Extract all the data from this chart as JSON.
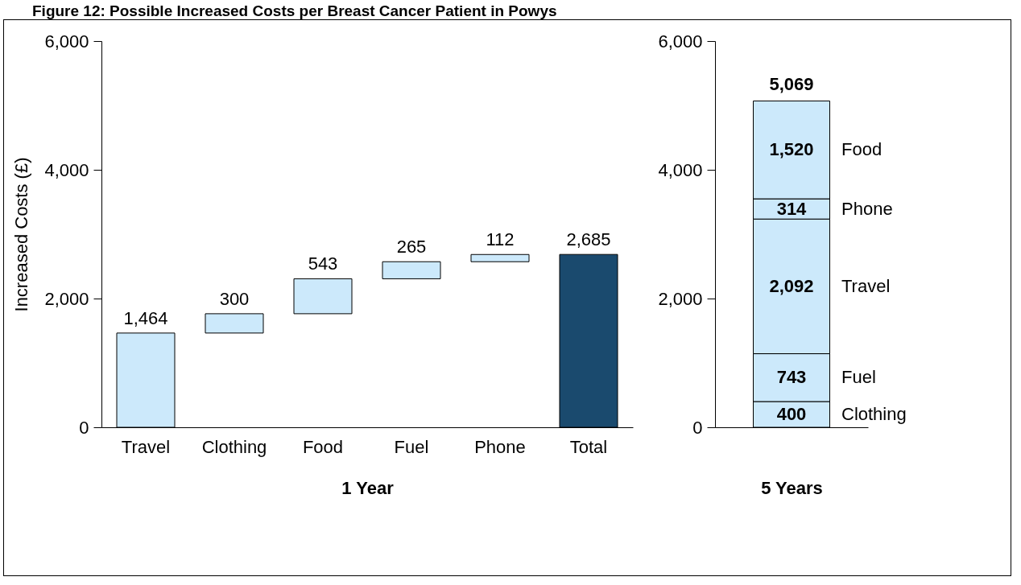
{
  "chart_data": [
    {
      "type": "bar",
      "title": "Figure 12: Possible Increased Costs per Breast Cancer Patient in Powys",
      "categories": [
        "Travel",
        "Clothing",
        "Food",
        "Fuel",
        "Phone",
        "Total"
      ],
      "values": [
        1464,
        300,
        543,
        265,
        112,
        2685
      ],
      "value_labels": [
        "1,464",
        "300",
        "543",
        "265",
        "112",
        "2,685"
      ],
      "base": [
        0,
        1464,
        1764,
        2307,
        2572,
        0
      ],
      "colors": [
        "#cce9fb",
        "#cce9fb",
        "#cce9fb",
        "#cce9fb",
        "#cce9fb",
        "#1a4a6e"
      ],
      "xlabel": "1 Year",
      "ylabel": "Increased Costs (£)",
      "ylim": [
        0,
        6000
      ],
      "yticks": [
        0,
        {
          "value": 2000,
          "label": "2,000"
        },
        {
          "value": 4000,
          "label": "4,000"
        },
        {
          "value": 6000,
          "label": "6,000"
        }
      ],
      "grid": false,
      "legend": false
    },
    {
      "type": "bar",
      "stacked": true,
      "categories": [
        null
      ],
      "series": [
        {
          "name": "Clothing",
          "color": "#cce9fb",
          "values": [
            400
          ],
          "value_labels": [
            "400"
          ]
        },
        {
          "name": "Fuel",
          "color": "#cce9fb",
          "values": [
            743
          ],
          "value_labels": [
            "743"
          ]
        },
        {
          "name": "Travel",
          "color": "#cce9fb",
          "values": [
            2092
          ],
          "value_labels": [
            "2,092"
          ]
        },
        {
          "name": "Phone",
          "color": "#cce9fb",
          "values": [
            314
          ],
          "value_labels": [
            "314"
          ]
        },
        {
          "name": "Food",
          "color": "#cce9fb",
          "values": [
            1520
          ],
          "value_labels": [
            "1,520"
          ]
        }
      ],
      "totals": [
        "5,069"
      ],
      "xlabel": "5 Years",
      "ylim": [
        0,
        6000
      ],
      "yticks": [
        0,
        {
          "value": 2000,
          "label": "2,000"
        },
        {
          "value": 4000,
          "label": "4,000"
        },
        {
          "value": 6000,
          "label": "6,000"
        }
      ],
      "grid": false,
      "legend": false
    }
  ]
}
